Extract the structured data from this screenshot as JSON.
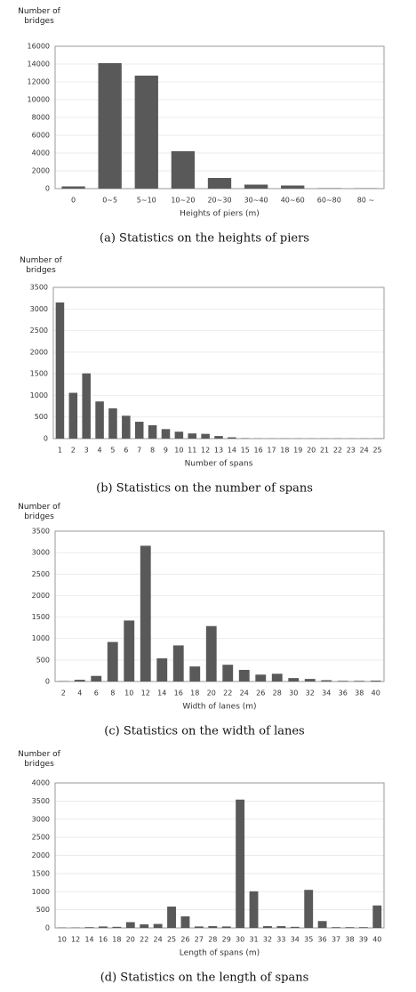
{
  "chart_data": [
    {
      "type": "bar",
      "y_label": "Number of bridges",
      "x_label": "Heights of piers (m)",
      "caption": "(a) Statistics on the heights of piers",
      "categories": [
        "0",
        "0~5",
        "5~10",
        "10~20",
        "20~30",
        "30~40",
        "40~60",
        "60~80",
        "80 ~"
      ],
      "values": [
        250,
        14100,
        12700,
        4200,
        1200,
        450,
        350,
        50,
        30
      ],
      "color": "#595959",
      "ylim": [
        0,
        16000
      ],
      "yticks": [
        0,
        2000,
        4000,
        6000,
        8000,
        10000,
        12000,
        14000,
        16000
      ],
      "grid": true
    },
    {
      "type": "bar",
      "y_label": "Number of bridges",
      "x_label": "Number of spans",
      "caption": "(b) Statistics on the number of spans",
      "categories": [
        "1",
        "2",
        "3",
        "4",
        "5",
        "6",
        "7",
        "8",
        "9",
        "10",
        "11",
        "12",
        "13",
        "14",
        "15",
        "16",
        "17",
        "18",
        "19",
        "20",
        "21",
        "22",
        "23",
        "24",
        "25"
      ],
      "values": [
        3150,
        1060,
        1510,
        860,
        700,
        530,
        390,
        310,
        220,
        160,
        120,
        110,
        60,
        30,
        10,
        5,
        5,
        5,
        5,
        5,
        5,
        5,
        5,
        5,
        5
      ],
      "color": "#595959",
      "ylim": [
        0,
        3500
      ],
      "yticks": [
        0,
        500,
        1000,
        1500,
        2000,
        2500,
        3000,
        3500
      ],
      "grid": true
    },
    {
      "type": "bar",
      "y_label": "Number of bridges",
      "x_label": "Width of lanes (m)",
      "caption": "(c) Statistics on the width of lanes",
      "categories": [
        "2",
        "4",
        "6",
        "8",
        "10",
        "12",
        "14",
        "16",
        "18",
        "20",
        "22",
        "24",
        "26",
        "28",
        "30",
        "32",
        "34",
        "36",
        "38",
        "40"
      ],
      "values": [
        10,
        40,
        130,
        920,
        1420,
        3160,
        540,
        840,
        350,
        1290,
        390,
        270,
        160,
        180,
        80,
        60,
        30,
        15,
        15,
        20
      ],
      "color": "#595959",
      "ylim": [
        0,
        3500
      ],
      "yticks": [
        0,
        500,
        1000,
        1500,
        2000,
        2500,
        3000,
        3500
      ],
      "grid": true
    },
    {
      "type": "bar",
      "y_label": "Number of bridges",
      "x_label": "Length of spans (m)",
      "caption": "(d) Statistics on the length of spans",
      "categories": [
        "10",
        "12",
        "14",
        "16",
        "18",
        "20",
        "22",
        "24",
        "25",
        "26",
        "27",
        "28",
        "29",
        "30",
        "31",
        "32",
        "33",
        "34",
        "35",
        "36",
        "37",
        "38",
        "39",
        "40"
      ],
      "values": [
        10,
        10,
        20,
        40,
        30,
        160,
        100,
        110,
        590,
        320,
        40,
        50,
        40,
        3540,
        1010,
        50,
        50,
        30,
        1050,
        190,
        20,
        20,
        20,
        620
      ],
      "color": "#595959",
      "ylim": [
        0,
        4000
      ],
      "yticks": [
        0,
        500,
        1000,
        1500,
        2000,
        2500,
        3000,
        3500,
        4000
      ],
      "grid": true
    }
  ]
}
